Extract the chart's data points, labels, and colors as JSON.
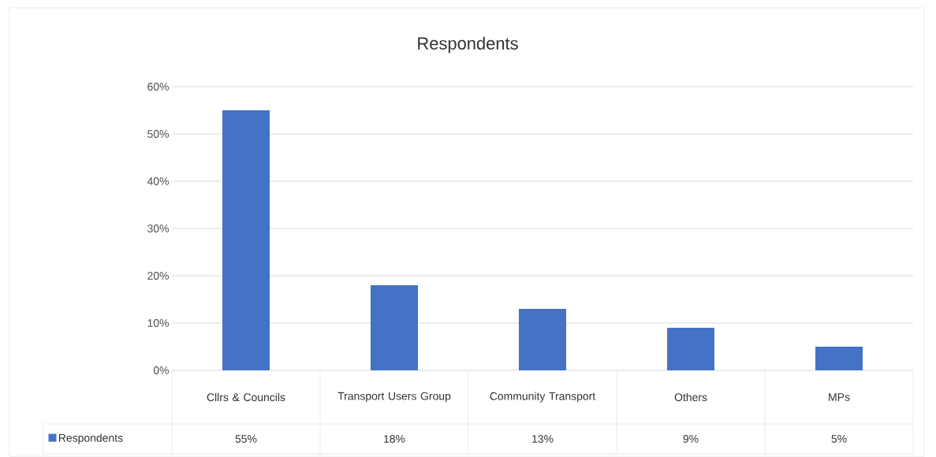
{
  "chart_data": {
    "type": "bar",
    "title": "Respondents",
    "categories": [
      "Cllrs & Councils",
      "Transport Users Group",
      "Community Transport",
      "Others",
      "MPs"
    ],
    "series": [
      {
        "name": "Respondents",
        "color": "#4472c4",
        "values": [
          55,
          18,
          13,
          9,
          5
        ],
        "value_labels": [
          "55%",
          "18%",
          "13%",
          "9%",
          "5%"
        ]
      }
    ],
    "ylim": [
      0,
      60
    ],
    "yticks": [
      {
        "value": 0,
        "label": "0%"
      },
      {
        "value": 10,
        "label": "10%"
      },
      {
        "value": 20,
        "label": "20%"
      },
      {
        "value": 30,
        "label": "30%"
      },
      {
        "value": 40,
        "label": "40%"
      },
      {
        "value": 50,
        "label": "50%"
      },
      {
        "value": 60,
        "label": "60%"
      }
    ],
    "grid": "y",
    "legend": "bottom"
  }
}
